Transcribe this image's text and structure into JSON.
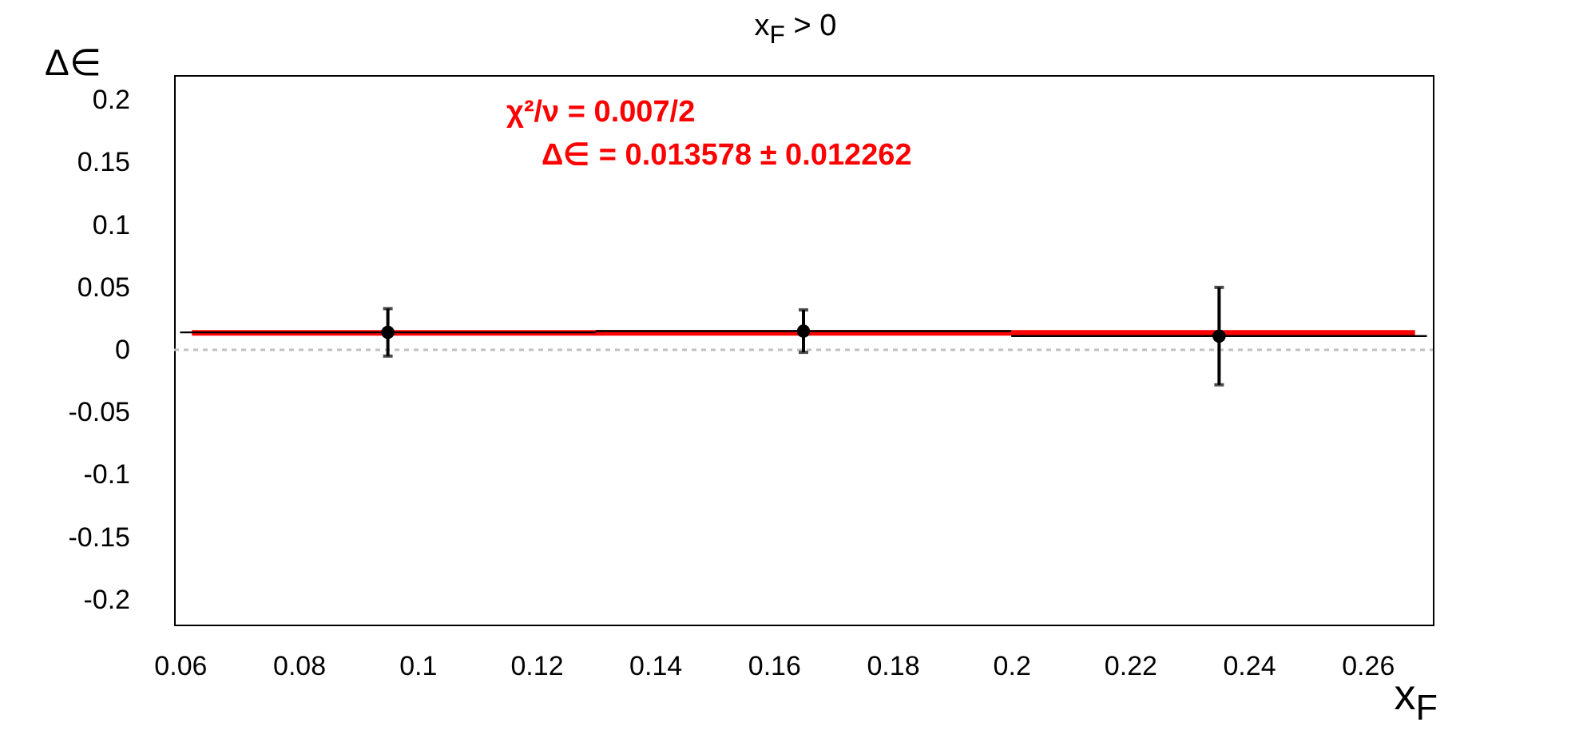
{
  "chart_data": {
    "type": "scatter",
    "title": "x$_{F}$ > 0",
    "xlabel": "x$_{F}$",
    "ylabel": "Δ∈",
    "annotations": [
      "χ²/ν = 0.007/2",
      "Δ∈ = 0.013578 ± 0.012262"
    ],
    "x": [
      0.095,
      0.165,
      0.235
    ],
    "series": [
      {
        "color": "#000000",
        "marker": "circle",
        "values": [
          0.014,
          0.015,
          0.011
        ],
        "errors": [
          0.019,
          0.017,
          0.039
        ],
        "xerrors": [
          0.035,
          0.035,
          0.035
        ]
      },
      {
        "type": "line",
        "color": "#ff0000",
        "x": [
          0.062,
          0.268
        ],
        "values": [
          0.013578,
          0.013578
        ]
      }
    ],
    "ref_lines": [
      {
        "axis": "y",
        "value": 0,
        "color": "#c0c0c0",
        "line_style": "dotted"
      }
    ],
    "xlim": [
      0.059,
      0.271
    ],
    "xticks": [
      0.06,
      0.08,
      0.1,
      0.12,
      0.14,
      0.16,
      0.18,
      0.2,
      0.22,
      0.24,
      0.26
    ],
    "ylim": [
      -0.22,
      0.22
    ],
    "yticks": [
      -0.2,
      -0.15,
      -0.1,
      -0.05,
      0,
      0.05,
      0.1,
      0.15,
      0.2
    ],
    "grid": false
  }
}
